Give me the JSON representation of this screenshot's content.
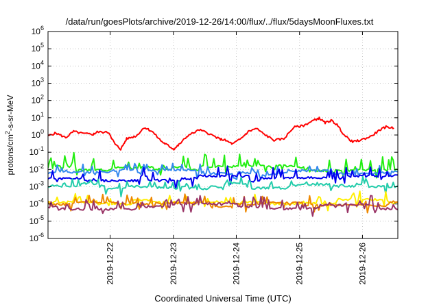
{
  "chart_data": {
    "type": "line",
    "title": "/data/run/goesPlots/archive/2019-12-26/14:00/flux/../flux/5daysMoonFluxes.txt",
    "xlabel": "Coordinated Universal Time (UTC)",
    "ylabel_parts": {
      "pre": "protons/cm",
      "sup": "2",
      "post": "-s-sr-MeV"
    },
    "yscale": "log",
    "ylim": [
      1e-06,
      1000000.0
    ],
    "xlim_days": [
      0.0,
      5.85
    ],
    "grid": true,
    "y_ticks": [
      {
        "base": "10",
        "exp": "6"
      },
      {
        "base": "10",
        "exp": "5"
      },
      {
        "base": "10",
        "exp": "4"
      },
      {
        "base": "10",
        "exp": "3"
      },
      {
        "base": "10",
        "exp": "2"
      },
      {
        "base": "10",
        "exp": "1"
      },
      {
        "base": "10",
        "exp": "0"
      },
      {
        "base": "10",
        "exp": "-1"
      },
      {
        "base": "10",
        "exp": "-2"
      },
      {
        "base": "10",
        "exp": "-3"
      },
      {
        "base": "10",
        "exp": "-4"
      },
      {
        "base": "10",
        "exp": "-5"
      },
      {
        "base": "10",
        "exp": "-6"
      }
    ],
    "x_ticks": [
      "2019-12-22",
      "2019-12-23",
      "2019-12-24",
      "2019-12-25",
      "2019-12-26"
    ],
    "series": [
      {
        "color": "#ff0000",
        "style": "smooth",
        "points": [
          [
            0,
            0.9
          ],
          [
            0.2,
            1.3
          ],
          [
            0.45,
            0.7
          ],
          [
            0.65,
            1.6
          ],
          [
            0.9,
            1.2
          ],
          [
            1.15,
            1.1
          ],
          [
            1.25,
            1.5
          ],
          [
            1.55,
            1.4
          ],
          [
            1.7,
            0.3
          ],
          [
            1.85,
            0.15
          ],
          [
            2.0,
            0.6
          ],
          [
            2.25,
            0.9
          ],
          [
            2.45,
            2.8
          ],
          [
            2.65,
            1.6
          ],
          [
            2.9,
            0.4
          ],
          [
            3.05,
            0.25
          ],
          [
            3.2,
            0.15
          ],
          [
            3.35,
            0.3
          ],
          [
            3.55,
            0.9
          ],
          [
            3.85,
            2.0
          ],
          [
            4.1,
            1.2
          ],
          [
            4.35,
            0.6
          ],
          [
            4.5,
            0.5
          ],
          [
            4.7,
            0.3
          ],
          [
            4.9,
            0.6
          ],
          [
            5.1,
            1.6
          ],
          [
            5.3,
            2.4
          ],
          [
            5.5,
            1.1
          ],
          [
            5.75,
            0.5
          ],
          [
            6.0,
            0.6
          ],
          [
            6.25,
            2.8
          ],
          [
            6.5,
            3.5
          ],
          [
            6.75,
            7.0
          ],
          [
            6.9,
            9.5
          ],
          [
            7.05,
            5.0
          ],
          [
            7.2,
            7.0
          ],
          [
            7.35,
            4.0
          ],
          [
            7.55,
            0.9
          ],
          [
            7.75,
            0.4
          ],
          [
            7.95,
            0.5
          ],
          [
            8.2,
            0.8
          ],
          [
            8.45,
            2.0
          ],
          [
            8.6,
            3.0
          ],
          [
            8.8,
            2.5
          ]
        ]
      },
      {
        "color": "#22ee11",
        "style": "spiky",
        "base": 0.011,
        "amp": 4.5,
        "seed": 3,
        "points": []
      },
      {
        "color": "#3388ee",
        "style": "spiky",
        "base": 0.0065,
        "amp": 2.0,
        "seed": 7,
        "points": []
      },
      {
        "color": "#0000ee",
        "style": "spiky",
        "base": 0.003,
        "amp": 3.0,
        "seed": 11,
        "points": []
      },
      {
        "color": "#22ccaa",
        "style": "spiky",
        "base": 0.0011,
        "amp": 1.6,
        "seed": 17,
        "points": []
      },
      {
        "color": "#ffee00",
        "style": "spiky",
        "base": 0.00013,
        "amp": 2.0,
        "seed": 23,
        "points": []
      },
      {
        "color": "#ee8800",
        "style": "spiky",
        "base": 9e-05,
        "amp": 2.2,
        "seed": 29,
        "points": []
      },
      {
        "color": "#993366",
        "style": "spiky",
        "base": 7e-05,
        "amp": 2.4,
        "seed": 31,
        "points": []
      }
    ]
  }
}
